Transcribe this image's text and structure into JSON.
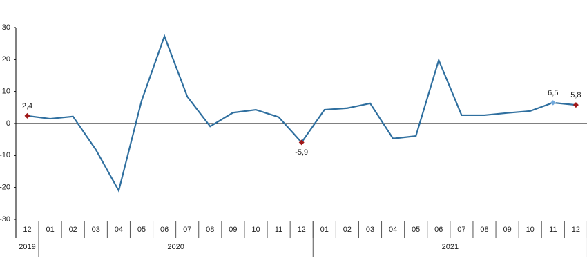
{
  "chart_data": {
    "type": "line",
    "categories": [
      "12",
      "01",
      "02",
      "03",
      "04",
      "05",
      "06",
      "07",
      "08",
      "09",
      "10",
      "11",
      "12",
      "01",
      "02",
      "03",
      "04",
      "05",
      "06",
      "07",
      "08",
      "09",
      "10",
      "11",
      "12"
    ],
    "years": [
      "2019",
      "2020",
      "2021"
    ],
    "series": [
      {
        "color": "#2f6f9f",
        "values": [
          2.4,
          1.5,
          2.2,
          -8.2,
          -21,
          7.1,
          27.3,
          8.4,
          -0.9,
          3.4,
          4.3,
          2.0,
          -5.9,
          4.3,
          4.8,
          6.3,
          -4.7,
          -3.9,
          19.8,
          2.6,
          2.6,
          3.3,
          3.9,
          6.5,
          5.8
        ],
        "value_labels": [
          "2,4",
          null,
          null,
          null,
          null,
          null,
          null,
          null,
          null,
          null,
          null,
          null,
          "-5,9",
          null,
          null,
          null,
          null,
          null,
          null,
          null,
          null,
          null,
          null,
          "6,5",
          "5,8"
        ],
        "marker_colors": [
          "#a01818",
          null,
          null,
          null,
          null,
          null,
          null,
          null,
          null,
          null,
          null,
          null,
          "#a01818",
          null,
          null,
          null,
          null,
          null,
          null,
          null,
          null,
          null,
          null,
          "#6fa8dc",
          "#a01818"
        ]
      }
    ],
    "ylim": [
      -30,
      30
    ],
    "yticks": [
      30,
      20,
      10,
      0,
      -10,
      -20,
      -30
    ]
  }
}
